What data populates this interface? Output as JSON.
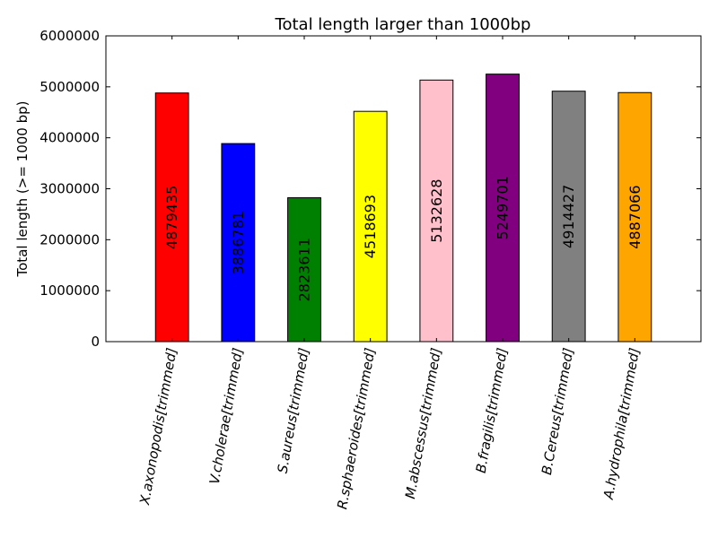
{
  "chart_data": {
    "type": "bar",
    "title": "Total length larger than 1000bp",
    "xlabel": "",
    "ylabel": "Total length (>= 1000 bp)",
    "ylim": [
      0,
      6000000
    ],
    "yticks": [
      0,
      1000000,
      2000000,
      3000000,
      4000000,
      5000000,
      6000000
    ],
    "ytick_labels": [
      "0",
      "1000000",
      "2000000",
      "3000000",
      "4000000",
      "5000000",
      "6000000"
    ],
    "categories": [
      "X.axonopodis[trimmed]",
      "V.cholerae[trimmed]",
      "S.aureus[trimmed]",
      "R.sphaeroides[trimmed]",
      "M.abscessus[trimmed]",
      "B.fragilis[trimmed]",
      "B.Cereus[trimmed]",
      "A.hydrophila[trimmed]"
    ],
    "values": [
      4879435,
      3886781,
      2823611,
      4518693,
      5132628,
      5249701,
      4914427,
      4887066
    ],
    "data_labels": [
      "4879435",
      "3886781",
      "2823611",
      "4518693",
      "5132628",
      "5249701",
      "4914427",
      "4887066"
    ],
    "colors": [
      "#ff0000",
      "#0000ff",
      "#008000",
      "#ffff00",
      "#ffc0cb",
      "#800080",
      "#808080",
      "#ffa500"
    ],
    "grid": false
  }
}
